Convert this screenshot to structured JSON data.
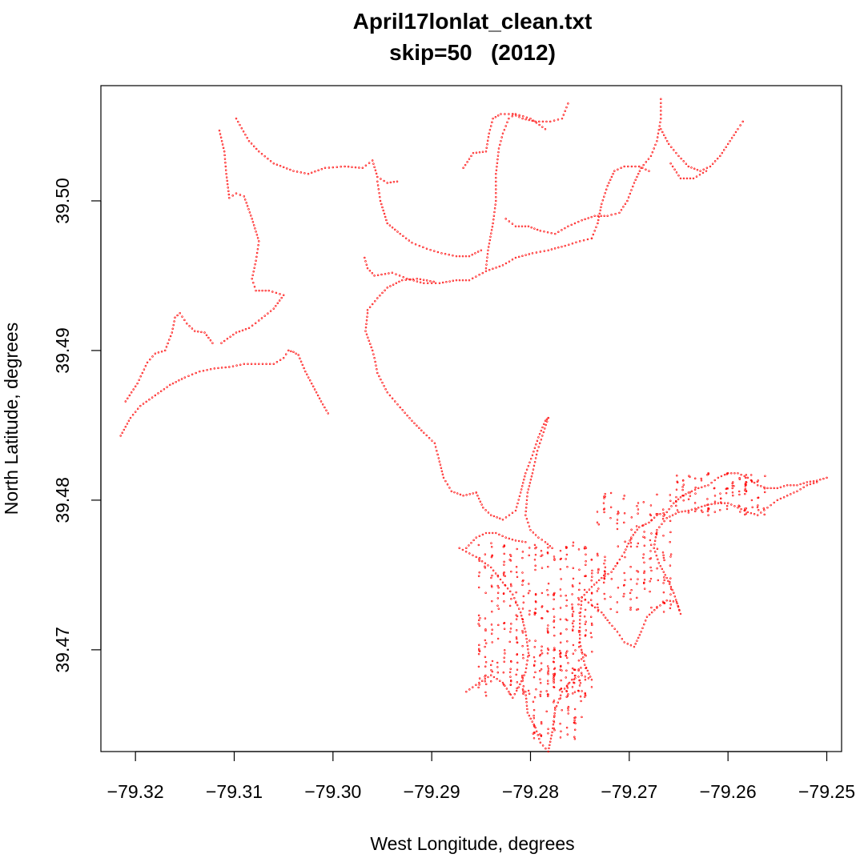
{
  "chart_data": {
    "type": "scatter",
    "title": "April17lonlat_clean.txt",
    "subtitle": "skip=50   (2012)",
    "xlabel": "West Longitude, degrees",
    "ylabel": "North Latitude, degrees",
    "xlim": [
      -79.3235,
      -79.2485
    ],
    "ylim": [
      39.4632,
      39.5077
    ],
    "x_ticks": [
      -79.32,
      -79.31,
      -79.3,
      -79.29,
      -79.28,
      -79.27,
      -79.26,
      -79.25
    ],
    "x_tick_labels": [
      "−79.32",
      "−79.31",
      "−79.30",
      "−79.29",
      "−79.28",
      "−79.27",
      "−79.26",
      "−79.25"
    ],
    "y_ticks": [
      39.47,
      39.48,
      39.49,
      39.5
    ],
    "y_tick_labels": [
      "39.47",
      "39.48",
      "39.49",
      "39.50"
    ],
    "point_color": "#ff0000",
    "grid": false,
    "legend": "none",
    "paths": [
      [
        [
          -79.3215,
          39.4843
        ],
        [
          -79.3205,
          39.4855
        ],
        [
          -79.3195,
          39.4863
        ],
        [
          -79.318,
          39.487
        ],
        [
          -79.3165,
          39.4877
        ],
        [
          -79.315,
          39.4882
        ],
        [
          -79.3135,
          39.4886
        ],
        [
          -79.312,
          39.4888
        ],
        [
          -79.3105,
          39.4889
        ],
        [
          -79.309,
          39.4891
        ],
        [
          -79.3075,
          39.4891
        ],
        [
          -79.306,
          39.4891
        ],
        [
          -79.305,
          39.4895
        ],
        [
          -79.3045,
          39.49
        ],
        [
          -79.304,
          39.4899
        ],
        [
          -79.3035,
          39.4897
        ],
        [
          -79.3028,
          39.4886
        ],
        [
          -79.302,
          39.4876
        ],
        [
          -79.3012,
          39.4866
        ],
        [
          -79.3005,
          39.4858
        ]
      ],
      [
        [
          -79.321,
          39.4866
        ],
        [
          -79.3198,
          39.4878
        ],
        [
          -79.3188,
          39.4892
        ],
        [
          -79.318,
          39.4898
        ],
        [
          -79.317,
          39.49
        ],
        [
          -79.3163,
          39.4912
        ],
        [
          -79.316,
          39.4922
        ],
        [
          -79.3155,
          39.4925
        ],
        [
          -79.3148,
          39.4918
        ],
        [
          -79.314,
          39.4913
        ],
        [
          -79.313,
          39.4912
        ],
        [
          -79.3122,
          39.4905
        ]
      ],
      [
        [
          -79.3113,
          39.4905
        ],
        [
          -79.3098,
          39.4912
        ],
        [
          -79.3085,
          39.4915
        ],
        [
          -79.3075,
          39.492
        ],
        [
          -79.306,
          39.4928
        ],
        [
          -79.305,
          39.4937
        ],
        [
          -79.3065,
          39.494
        ],
        [
          -79.3078,
          39.494
        ],
        [
          -79.3082,
          39.4948
        ],
        [
          -79.3078,
          39.496
        ],
        [
          -79.3075,
          39.4973
        ],
        [
          -79.3082,
          39.4988
        ],
        [
          -79.309,
          39.5003
        ],
        [
          -79.3098,
          39.5005
        ],
        [
          -79.3105,
          39.5002
        ],
        [
          -79.3108,
          39.5018
        ],
        [
          -79.311,
          39.5033
        ],
        [
          -79.3115,
          39.5047
        ]
      ],
      [
        [
          -79.3098,
          39.5055
        ],
        [
          -79.3085,
          39.504
        ],
        [
          -79.3075,
          39.5033
        ],
        [
          -79.306,
          39.5025
        ],
        [
          -79.304,
          39.502
        ],
        [
          -79.3025,
          39.5018
        ],
        [
          -79.3008,
          39.5022
        ],
        [
          -79.2988,
          39.5023
        ],
        [
          -79.297,
          39.5022
        ],
        [
          -79.296,
          39.5027
        ],
        [
          -79.2955,
          39.5016
        ],
        [
          -79.2945,
          39.5012
        ],
        [
          -79.2935,
          39.5013
        ]
      ],
      [
        [
          -79.2955,
          39.5013
        ],
        [
          -79.2952,
          39.5
        ],
        [
          -79.2945,
          39.4985
        ],
        [
          -79.2932,
          39.4978
        ],
        [
          -79.292,
          39.4972
        ],
        [
          -79.2905,
          39.4968
        ],
        [
          -79.289,
          39.4965
        ],
        [
          -79.2875,
          39.4963
        ],
        [
          -79.2862,
          39.4963
        ],
        [
          -79.285,
          39.4967
        ]
      ],
      [
        [
          -79.2968,
          39.4962
        ],
        [
          -79.2965,
          39.4955
        ],
        [
          -79.2958,
          39.495
        ],
        [
          -79.294,
          39.4952
        ],
        [
          -79.2925,
          39.4948
        ],
        [
          -79.2908,
          39.4945
        ],
        [
          -79.2892,
          39.4945
        ],
        [
          -79.2875,
          39.4947
        ],
        [
          -79.2862,
          39.4947
        ],
        [
          -79.2845,
          39.4953
        ],
        [
          -79.2828,
          39.4957
        ],
        [
          -79.2815,
          39.4962
        ],
        [
          -79.2798,
          39.4965
        ],
        [
          -79.2782,
          39.4967
        ],
        [
          -79.2765,
          39.497
        ],
        [
          -79.275,
          39.4973
        ],
        [
          -79.2738,
          39.4975
        ]
      ],
      [
        [
          -79.2965,
          39.4927
        ],
        [
          -79.2955,
          39.4935
        ],
        [
          -79.2945,
          39.4942
        ],
        [
          -79.293,
          39.4947
        ],
        [
          -79.2915,
          39.4948
        ],
        [
          -79.2898,
          39.4946
        ]
      ],
      [
        [
          -79.2965,
          39.4925
        ],
        [
          -79.2967,
          39.4913
        ],
        [
          -79.296,
          39.49
        ],
        [
          -79.2958,
          39.4895
        ],
        [
          -79.2955,
          39.4885
        ],
        [
          -79.2945,
          39.4872
        ],
        [
          -79.2932,
          39.4862
        ],
        [
          -79.292,
          39.4853
        ],
        [
          -79.2908,
          39.4845
        ],
        [
          -79.2897,
          39.4838
        ],
        [
          -79.2893,
          39.4828
        ],
        [
          -79.2888,
          39.4815
        ],
        [
          -79.288,
          39.4806
        ],
        [
          -79.2868,
          39.4803
        ],
        [
          -79.2855,
          39.4805
        ]
      ],
      [
        [
          -79.2855,
          39.4805
        ],
        [
          -79.2848,
          39.4795
        ],
        [
          -79.284,
          39.479
        ],
        [
          -79.2828,
          39.4787
        ],
        [
          -79.2815,
          39.4793
        ],
        [
          -79.281,
          39.4805
        ],
        [
          -79.2805,
          39.4818
        ],
        [
          -79.2798,
          39.483
        ],
        [
          -79.2792,
          39.4842
        ],
        [
          -79.2785,
          39.4853
        ],
        [
          -79.2782,
          39.4855
        ]
      ],
      [
        [
          -79.2782,
          39.4855
        ],
        [
          -79.2788,
          39.4843
        ],
        [
          -79.2793,
          39.4833
        ],
        [
          -79.2798,
          39.4818
        ],
        [
          -79.2803,
          39.4805
        ],
        [
          -79.2805,
          39.479
        ],
        [
          -79.28,
          39.478
        ],
        [
          -79.2792,
          39.4775
        ],
        [
          -79.2785,
          39.4772
        ],
        [
          -79.2778,
          39.4768
        ]
      ],
      [
        [
          -79.2845,
          39.4955
        ],
        [
          -79.2843,
          39.4967
        ],
        [
          -79.2838,
          39.4985
        ],
        [
          -79.2835,
          39.5
        ],
        [
          -79.2835,
          39.5018
        ],
        [
          -79.2832,
          39.5035
        ],
        [
          -79.2828,
          39.5045
        ],
        [
          -79.2822,
          39.5055
        ],
        [
          -79.2815,
          39.5058
        ],
        [
          -79.28,
          39.5055
        ],
        [
          -79.2785,
          39.5048
        ]
      ],
      [
        [
          -79.2868,
          39.5022
        ],
        [
          -79.2858,
          39.5032
        ],
        [
          -79.2845,
          39.5033
        ],
        [
          -79.2842,
          39.5045
        ],
        [
          -79.2838,
          39.5055
        ],
        [
          -79.283,
          39.5058
        ],
        [
          -79.2818,
          39.5058
        ]
      ],
      [
        [
          -79.2818,
          39.5058
        ],
        [
          -79.2808,
          39.5055
        ],
        [
          -79.2795,
          39.5053
        ],
        [
          -79.278,
          39.5053
        ],
        [
          -79.2768,
          39.5055
        ],
        [
          -79.2762,
          39.5065
        ]
      ],
      [
        [
          -79.2825,
          39.4988
        ],
        [
          -79.2815,
          39.4983
        ],
        [
          -79.2802,
          39.4983
        ],
        [
          -79.279,
          39.498
        ],
        [
          -79.2775,
          39.4978
        ],
        [
          -79.2762,
          39.4983
        ],
        [
          -79.2748,
          39.4987
        ],
        [
          -79.2735,
          39.499
        ],
        [
          -79.2722,
          39.499
        ],
        [
          -79.271,
          39.4992
        ],
        [
          -79.2702,
          39.5
        ],
        [
          -79.2695,
          39.5012
        ],
        [
          -79.2688,
          39.5022
        ],
        [
          -79.2678,
          39.503
        ],
        [
          -79.2672,
          39.504
        ],
        [
          -79.2668,
          39.5055
        ],
        [
          -79.2668,
          39.5068
        ]
      ],
      [
        [
          -79.2738,
          39.4975
        ],
        [
          -79.2732,
          39.4985
        ],
        [
          -79.2728,
          39.4998
        ],
        [
          -79.2722,
          39.501
        ],
        [
          -79.2715,
          39.502
        ],
        [
          -79.2705,
          39.5023
        ],
        [
          -79.269,
          39.5023
        ],
        [
          -79.268,
          39.502
        ]
      ],
      [
        [
          -79.2668,
          39.5048
        ],
        [
          -79.266,
          39.5038
        ],
        [
          -79.265,
          39.503
        ],
        [
          -79.264,
          39.5023
        ],
        [
          -79.2628,
          39.502
        ],
        [
          -79.2618,
          39.5023
        ],
        [
          -79.2608,
          39.503
        ],
        [
          -79.2598,
          39.504
        ],
        [
          -79.259,
          39.5048
        ],
        [
          -79.2585,
          39.5053
        ]
      ],
      [
        [
          -79.2658,
          39.5025
        ],
        [
          -79.2648,
          39.5015
        ],
        [
          -79.2635,
          39.5015
        ],
        [
          -79.2622,
          39.502
        ]
      ],
      [
        [
          -79.2865,
          39.4768
        ],
        [
          -79.2855,
          39.4775
        ],
        [
          -79.2845,
          39.4778
        ],
        [
          -79.2835,
          39.4778
        ],
        [
          -79.2825,
          39.4775
        ],
        [
          -79.2815,
          39.4773
        ],
        [
          -79.2805,
          39.4772
        ]
      ],
      [
        [
          -79.2872,
          39.4768
        ],
        [
          -79.2855,
          39.4762
        ],
        [
          -79.284,
          39.4755
        ],
        [
          -79.2828,
          39.4745
        ],
        [
          -79.2818,
          39.4737
        ],
        [
          -79.281,
          39.4725
        ],
        [
          -79.2805,
          39.4712
        ],
        [
          -79.2802,
          39.4698
        ],
        [
          -79.2805,
          39.4685
        ],
        [
          -79.2812,
          39.4675
        ],
        [
          -79.2818,
          39.4668
        ],
        [
          -79.2828,
          39.4678
        ],
        [
          -79.284,
          39.4683
        ],
        [
          -79.2852,
          39.4678
        ],
        [
          -79.2865,
          39.4672
        ]
      ],
      [
        [
          -79.2805,
          39.4672
        ],
        [
          -79.2803,
          39.4658
        ],
        [
          -79.2795,
          39.4648
        ],
        [
          -79.279,
          39.4638
        ],
        [
          -79.2782,
          39.4632
        ],
        [
          -79.2778,
          39.4645
        ],
        [
          -79.2775,
          39.466
        ],
        [
          -79.2768,
          39.4672
        ],
        [
          -79.2758,
          39.468
        ],
        [
          -79.2748,
          39.4683
        ],
        [
          -79.2738,
          39.468
        ],
        [
          -79.2745,
          39.469
        ],
        [
          -79.275,
          39.4705
        ],
        [
          -79.275,
          39.472
        ],
        [
          -79.2748,
          39.4735
        ]
      ],
      [
        [
          -79.2748,
          39.4735
        ],
        [
          -79.2738,
          39.4742
        ],
        [
          -79.2728,
          39.4748
        ],
        [
          -79.2718,
          39.4752
        ],
        [
          -79.2712,
          39.4758
        ],
        [
          -79.2705,
          39.4765
        ],
        [
          -79.2698,
          39.4775
        ],
        [
          -79.269,
          39.4782
        ],
        [
          -79.268,
          39.4785
        ],
        [
          -79.2672,
          39.479
        ],
        [
          -79.2662,
          39.4792
        ],
        [
          -79.2655,
          39.4798
        ],
        [
          -79.2648,
          39.4802
        ],
        [
          -79.264,
          39.4805
        ],
        [
          -79.263,
          39.4808
        ],
        [
          -79.262,
          39.481
        ],
        [
          -79.261,
          39.4815
        ],
        [
          -79.26,
          39.4818
        ],
        [
          -79.259,
          39.4818
        ],
        [
          -79.258,
          39.4815
        ],
        [
          -79.257,
          39.481
        ],
        [
          -79.256,
          39.4808
        ],
        [
          -79.255,
          39.4808
        ],
        [
          -79.254,
          39.481
        ],
        [
          -79.253,
          39.481
        ],
        [
          -79.252,
          39.4812
        ],
        [
          -79.251,
          39.4813
        ],
        [
          -79.25,
          39.4815
        ]
      ],
      [
        [
          -79.2748,
          39.4735
        ],
        [
          -79.2738,
          39.473
        ],
        [
          -79.2728,
          39.4725
        ],
        [
          -79.272,
          39.4718
        ],
        [
          -79.2712,
          39.4712
        ],
        [
          -79.2705,
          39.4705
        ],
        [
          -79.2695,
          39.4702
        ],
        [
          -79.2688,
          39.4712
        ],
        [
          -79.2682,
          39.4722
        ],
        [
          -79.2672,
          39.4728
        ],
        [
          -79.2662,
          39.4733
        ],
        [
          -79.2652,
          39.4732
        ],
        [
          -79.2648,
          39.4724
        ],
        [
          -79.2655,
          39.4738
        ],
        [
          -79.2662,
          39.4748
        ],
        [
          -79.267,
          39.4758
        ],
        [
          -79.2675,
          39.4768
        ],
        [
          -79.2672,
          39.478
        ],
        [
          -79.2662,
          39.4788
        ],
        [
          -79.265,
          39.4792
        ],
        [
          -79.264,
          39.4793
        ],
        [
          -79.263,
          39.4795
        ],
        [
          -79.262,
          39.4797
        ],
        [
          -79.261,
          39.4798
        ],
        [
          -79.26,
          39.4798
        ],
        [
          -79.259,
          39.4795
        ],
        [
          -79.258,
          39.4792
        ],
        [
          -79.257,
          39.479
        ],
        [
          -79.256,
          39.4795
        ],
        [
          -79.255,
          39.48
        ],
        [
          -79.254,
          39.4803
        ],
        [
          -79.253,
          39.4806
        ],
        [
          -79.252,
          39.481
        ],
        [
          -79.251,
          39.4812
        ]
      ]
    ],
    "fill_regions": [
      {
        "xmin": -79.2855,
        "xmax": -79.2735,
        "ymin": 39.4668,
        "ymax": 39.4772,
        "count": 380
      },
      {
        "xmin": -79.28,
        "xmax": -79.2745,
        "ymin": 39.464,
        "ymax": 39.47,
        "count": 110
      },
      {
        "xmin": -79.2735,
        "xmax": -79.2655,
        "ymin": 39.4725,
        "ymax": 39.4805,
        "count": 160
      },
      {
        "xmin": -79.2655,
        "xmax": -79.256,
        "ymin": 39.479,
        "ymax": 39.4818,
        "count": 110
      }
    ]
  }
}
